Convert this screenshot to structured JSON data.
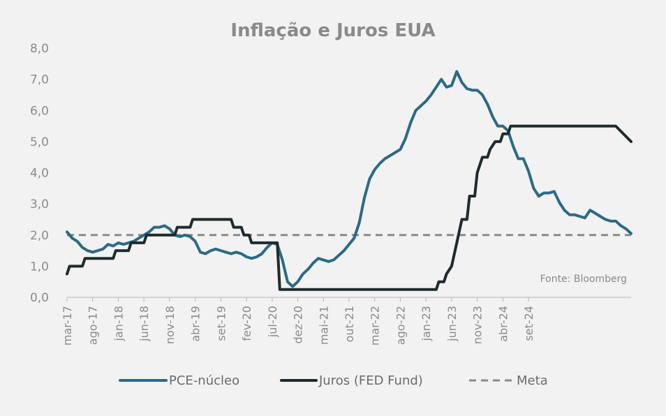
{
  "chart_data": {
    "type": "line",
    "title": "Inflação e Juros EUA",
    "source": "Fonte: Bloomberg",
    "ylim": [
      0,
      8
    ],
    "yticks": [
      "0,0",
      "1,0",
      "2,0",
      "3,0",
      "4,0",
      "5,0",
      "6,0",
      "7,0",
      "8,0"
    ],
    "xticks": [
      "mar-17",
      "ago-17",
      "jan-18",
      "jun-18",
      "nov-18",
      "abr-19",
      "set-19",
      "fev-20",
      "jul-20",
      "dez-20",
      "mai-21",
      "out-21",
      "mar-22",
      "ago-22",
      "jan-23",
      "jun-23",
      "nov-23",
      "abr-24",
      "set-24"
    ],
    "x_unit": "months from mar-17",
    "grid": false,
    "legend_position": "bottom",
    "colors": {
      "pce": "#2b6a86",
      "fed": "#1e2b2f",
      "meta": "#8a8a8a",
      "background": "#f2f2f2",
      "text": "#8a8a8a"
    },
    "series": [
      {
        "name": "PCE-núcleo",
        "key": "pce",
        "style": "solid",
        "points": [
          [
            0,
            2.1
          ],
          [
            1,
            1.9
          ],
          [
            2,
            1.8
          ],
          [
            3,
            1.6
          ],
          [
            4,
            1.5
          ],
          [
            5,
            1.45
          ],
          [
            6,
            1.5
          ],
          [
            7,
            1.55
          ],
          [
            8,
            1.7
          ],
          [
            9,
            1.65
          ],
          [
            10,
            1.75
          ],
          [
            11,
            1.7
          ],
          [
            12,
            1.75
          ],
          [
            13,
            1.8
          ],
          [
            14,
            1.9
          ],
          [
            15,
            2.0
          ],
          [
            16,
            2.1
          ],
          [
            17,
            2.25
          ],
          [
            18,
            2.25
          ],
          [
            19,
            2.3
          ],
          [
            20,
            2.2
          ],
          [
            21,
            2.0
          ],
          [
            22,
            1.95
          ],
          [
            23,
            2.0
          ],
          [
            24,
            1.95
          ],
          [
            25,
            1.8
          ],
          [
            26,
            1.45
          ],
          [
            27,
            1.4
          ],
          [
            28,
            1.5
          ],
          [
            29,
            1.55
          ],
          [
            30,
            1.5
          ],
          [
            31,
            1.45
          ],
          [
            32,
            1.4
          ],
          [
            33,
            1.45
          ],
          [
            34,
            1.4
          ],
          [
            35,
            1.3
          ],
          [
            36,
            1.25
          ],
          [
            37,
            1.3
          ],
          [
            38,
            1.4
          ],
          [
            39,
            1.6
          ],
          [
            40,
            1.75
          ],
          [
            41,
            1.7
          ],
          [
            42,
            1.2
          ],
          [
            43,
            0.5
          ],
          [
            44,
            0.35
          ],
          [
            45,
            0.5
          ],
          [
            46,
            0.75
          ],
          [
            47,
            0.9
          ],
          [
            48,
            1.1
          ],
          [
            49,
            1.25
          ],
          [
            50,
            1.2
          ],
          [
            51,
            1.15
          ],
          [
            52,
            1.2
          ],
          [
            53,
            1.35
          ],
          [
            54,
            1.5
          ],
          [
            55,
            1.7
          ],
          [
            56,
            1.9
          ],
          [
            57,
            2.4
          ],
          [
            58,
            3.2
          ],
          [
            59,
            3.8
          ],
          [
            60,
            4.1
          ],
          [
            61,
            4.3
          ],
          [
            62,
            4.45
          ],
          [
            63,
            4.55
          ],
          [
            64,
            4.65
          ],
          [
            65,
            4.75
          ],
          [
            66,
            5.1
          ],
          [
            67,
            5.6
          ],
          [
            68,
            6.0
          ],
          [
            69,
            6.15
          ],
          [
            70,
            6.3
          ],
          [
            71,
            6.5
          ],
          [
            72,
            6.75
          ],
          [
            73,
            7.0
          ],
          [
            74,
            6.75
          ],
          [
            75,
            6.8
          ],
          [
            76,
            7.25
          ],
          [
            77,
            6.9
          ],
          [
            78,
            6.7
          ],
          [
            79,
            6.65
          ],
          [
            80,
            6.65
          ],
          [
            81,
            6.5
          ],
          [
            82,
            6.2
          ],
          [
            83,
            5.8
          ],
          [
            84,
            5.5
          ],
          [
            85,
            5.5
          ],
          [
            86,
            5.35
          ],
          [
            87,
            4.85
          ],
          [
            88,
            4.45
          ],
          [
            89,
            4.45
          ],
          [
            90,
            4.05
          ],
          [
            91,
            3.5
          ],
          [
            92,
            3.25
          ],
          [
            93,
            3.35
          ],
          [
            94,
            3.35
          ],
          [
            95,
            3.4
          ],
          [
            96,
            3.05
          ],
          [
            97,
            2.8
          ],
          [
            98,
            2.65
          ],
          [
            99,
            2.65
          ],
          [
            100,
            2.6
          ],
          [
            101,
            2.55
          ],
          [
            102,
            2.8
          ],
          [
            103,
            2.7
          ],
          [
            104,
            2.6
          ],
          [
            105,
            2.5
          ],
          [
            106,
            2.45
          ],
          [
            107,
            2.45
          ],
          [
            108,
            2.3
          ],
          [
            109,
            2.2
          ],
          [
            110,
            2.05
          ]
        ]
      },
      {
        "name": "Juros (FED Fund)",
        "key": "fed",
        "style": "solid",
        "points": [
          [
            0,
            0.75
          ],
          [
            0.5,
            1.0
          ],
          [
            3,
            1.0
          ],
          [
            3.5,
            1.25
          ],
          [
            9,
            1.25
          ],
          [
            9.5,
            1.5
          ],
          [
            12,
            1.5
          ],
          [
            12.5,
            1.75
          ],
          [
            15,
            1.75
          ],
          [
            15.5,
            2.0
          ],
          [
            21,
            2.0
          ],
          [
            21.5,
            2.25
          ],
          [
            24,
            2.25
          ],
          [
            24.5,
            2.5
          ],
          [
            28,
            2.5
          ],
          [
            32,
            2.5
          ],
          [
            32.5,
            2.25
          ],
          [
            34,
            2.25
          ],
          [
            34.5,
            2.0
          ],
          [
            35.5,
            2.0
          ],
          [
            36,
            1.75
          ],
          [
            41,
            1.75
          ],
          [
            41.5,
            0.25
          ],
          [
            72,
            0.25
          ],
          [
            72.5,
            0.5
          ],
          [
            73.5,
            0.5
          ],
          [
            74,
            0.75
          ],
          [
            75,
            1.0
          ],
          [
            76,
            1.75
          ],
          [
            77,
            2.5
          ],
          [
            78,
            2.5
          ],
          [
            78.5,
            3.25
          ],
          [
            79.5,
            3.25
          ],
          [
            80,
            4.0
          ],
          [
            81,
            4.5
          ],
          [
            82,
            4.5
          ],
          [
            82.5,
            4.75
          ],
          [
            83.5,
            5.0
          ],
          [
            84.5,
            5.0
          ],
          [
            85,
            5.25
          ],
          [
            86,
            5.25
          ],
          [
            86.5,
            5.5
          ],
          [
            107,
            5.5
          ],
          [
            110,
            5.0
          ]
        ]
      },
      {
        "name": "Meta",
        "key": "meta",
        "style": "dashed",
        "points": [
          [
            0,
            2.0
          ],
          [
            110,
            2.0
          ]
        ]
      }
    ]
  }
}
